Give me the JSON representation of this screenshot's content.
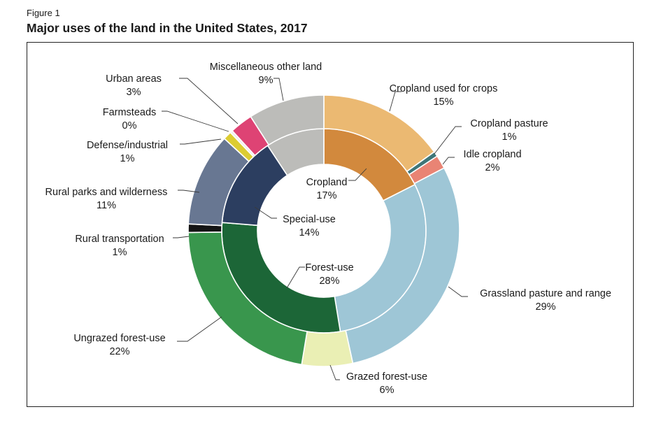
{
  "figure_label": "Figure 1",
  "title": "Major uses of the land in the United States, 2017",
  "chart_data": {
    "type": "pie",
    "subtype": "nested-donut",
    "title": "Major uses of the land in the United States, 2017",
    "inner_ring": [
      {
        "name": "Cropland",
        "value": 17,
        "label": "17%",
        "color": "#D2893D"
      },
      {
        "name": "Grassland pasture and range",
        "value": 29,
        "color": "#9EC6D6"
      },
      {
        "name": "Forest-use",
        "value": 28,
        "label": "28%",
        "color": "#1C6637"
      },
      {
        "name": "Special-use",
        "value": 14,
        "label": "14%",
        "color": "#2C3E60"
      },
      {
        "name": "Miscellaneous other land",
        "value": 9,
        "color": "#BCBCB9"
      }
    ],
    "outer_ring": [
      {
        "name": "Cropland used for crops",
        "value": 15,
        "label": "15%",
        "color": "#EBB972"
      },
      {
        "name": "Cropland pasture",
        "value": 0.6,
        "label": "1%",
        "color": "#3E7678"
      },
      {
        "name": "Idle cropland",
        "value": 1.6,
        "label": "2%",
        "color": "#E98474"
      },
      {
        "name": "Grassland pasture and range",
        "value": 29,
        "label": "29%",
        "color": "#9EC6D6"
      },
      {
        "name": "Grazed forest-use",
        "value": 6,
        "label": "6%",
        "color": "#EAEFB4"
      },
      {
        "name": "Ungrazed forest-use",
        "value": 22,
        "label": "22%",
        "color": "#39964D"
      },
      {
        "name": "Rural transportation",
        "value": 1,
        "label": "1%",
        "color": "#141414"
      },
      {
        "name": "Rural parks and wilderness",
        "value": 11,
        "label": "11%",
        "color": "#687792"
      },
      {
        "name": "Defense/industrial",
        "value": 1,
        "label": "1%",
        "color": "#DCCC32"
      },
      {
        "name": "Farmsteads",
        "value": 0.3,
        "label": "0%",
        "color": "#EEEEEE"
      },
      {
        "name": "Urban areas",
        "value": 2.7,
        "label": "3%",
        "color": "#DE4374"
      },
      {
        "name": "Miscellaneous other land",
        "value": 9,
        "label": "9%",
        "color": "#BCBCB9"
      }
    ]
  }
}
